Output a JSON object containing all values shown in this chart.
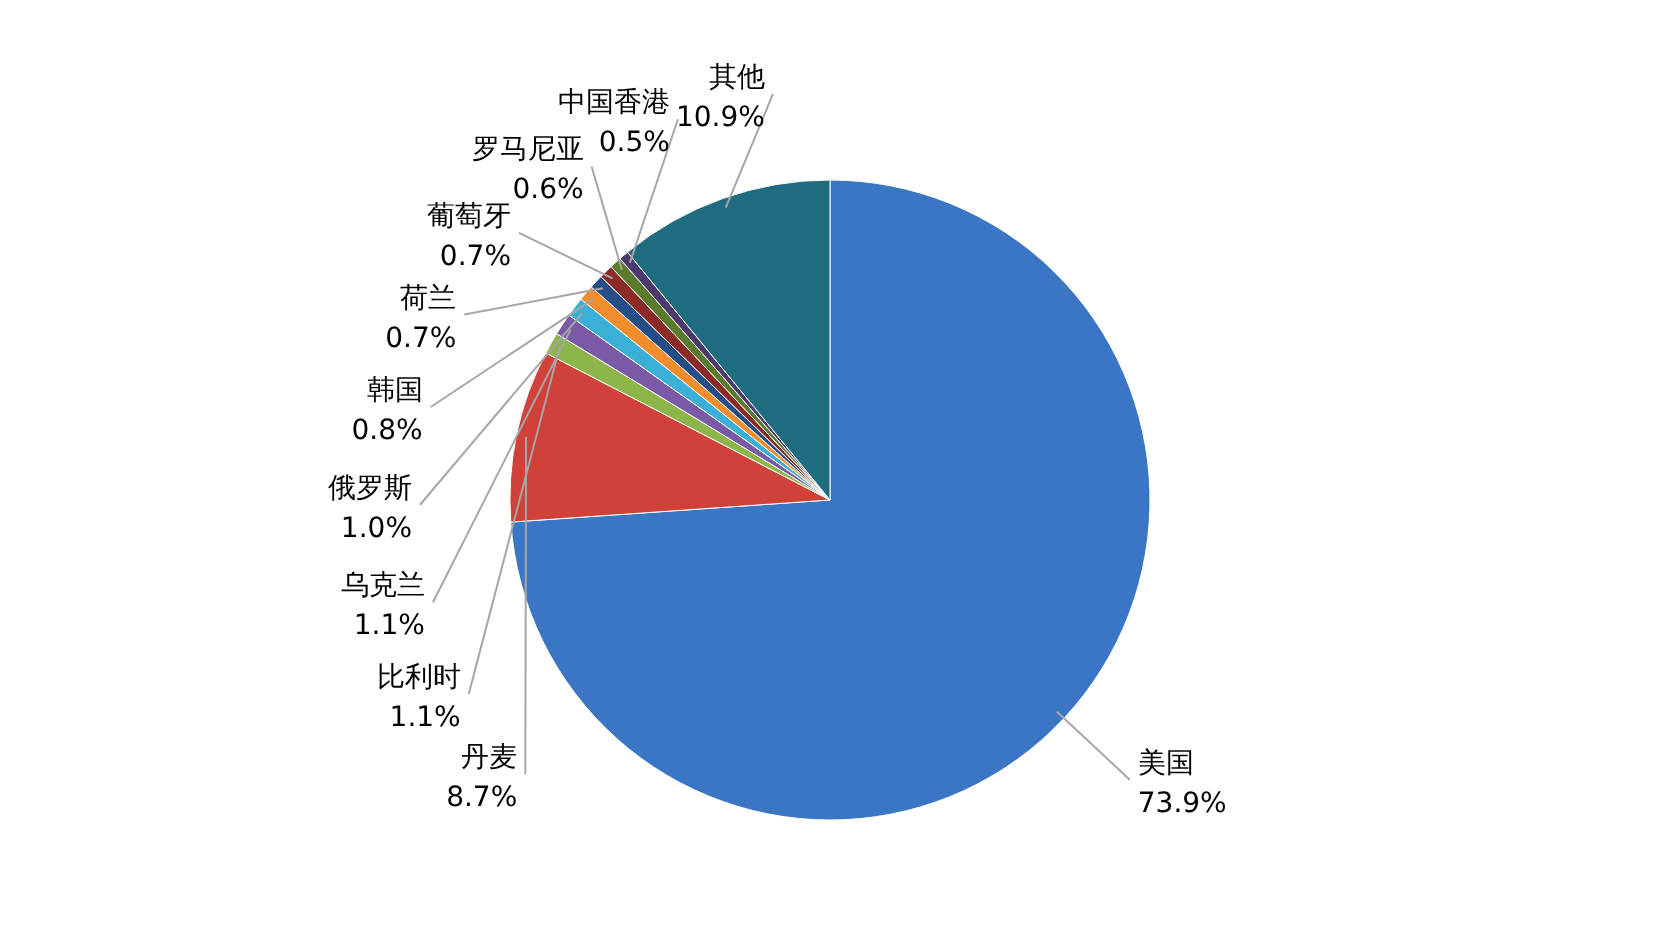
{
  "chart_data": {
    "type": "pie",
    "categories": [
      "美国",
      "丹麦",
      "比利时",
      "乌克兰",
      "俄罗斯",
      "韩国",
      "荷兰",
      "葡萄牙",
      "罗马尼亚",
      "中国香港",
      "其他"
    ],
    "values": [
      73.9,
      8.7,
      1.1,
      1.1,
      1.0,
      0.8,
      0.7,
      0.7,
      0.6,
      0.5,
      10.9
    ],
    "value_labels": [
      "73.9%",
      "8.7%",
      "1.1%",
      "1.1%",
      "1.0%",
      "0.8%",
      "0.7%",
      "0.7%",
      "0.6%",
      "0.5%",
      "10.9%"
    ],
    "colors": [
      "#3a76c4",
      "#d0413a",
      "#8cb64a",
      "#7a5aa6",
      "#3bb0d6",
      "#f38c2a",
      "#254d87",
      "#8c2a27",
      "#5a7a2c",
      "#4c3a6e",
      "#1f6c80"
    ]
  }
}
